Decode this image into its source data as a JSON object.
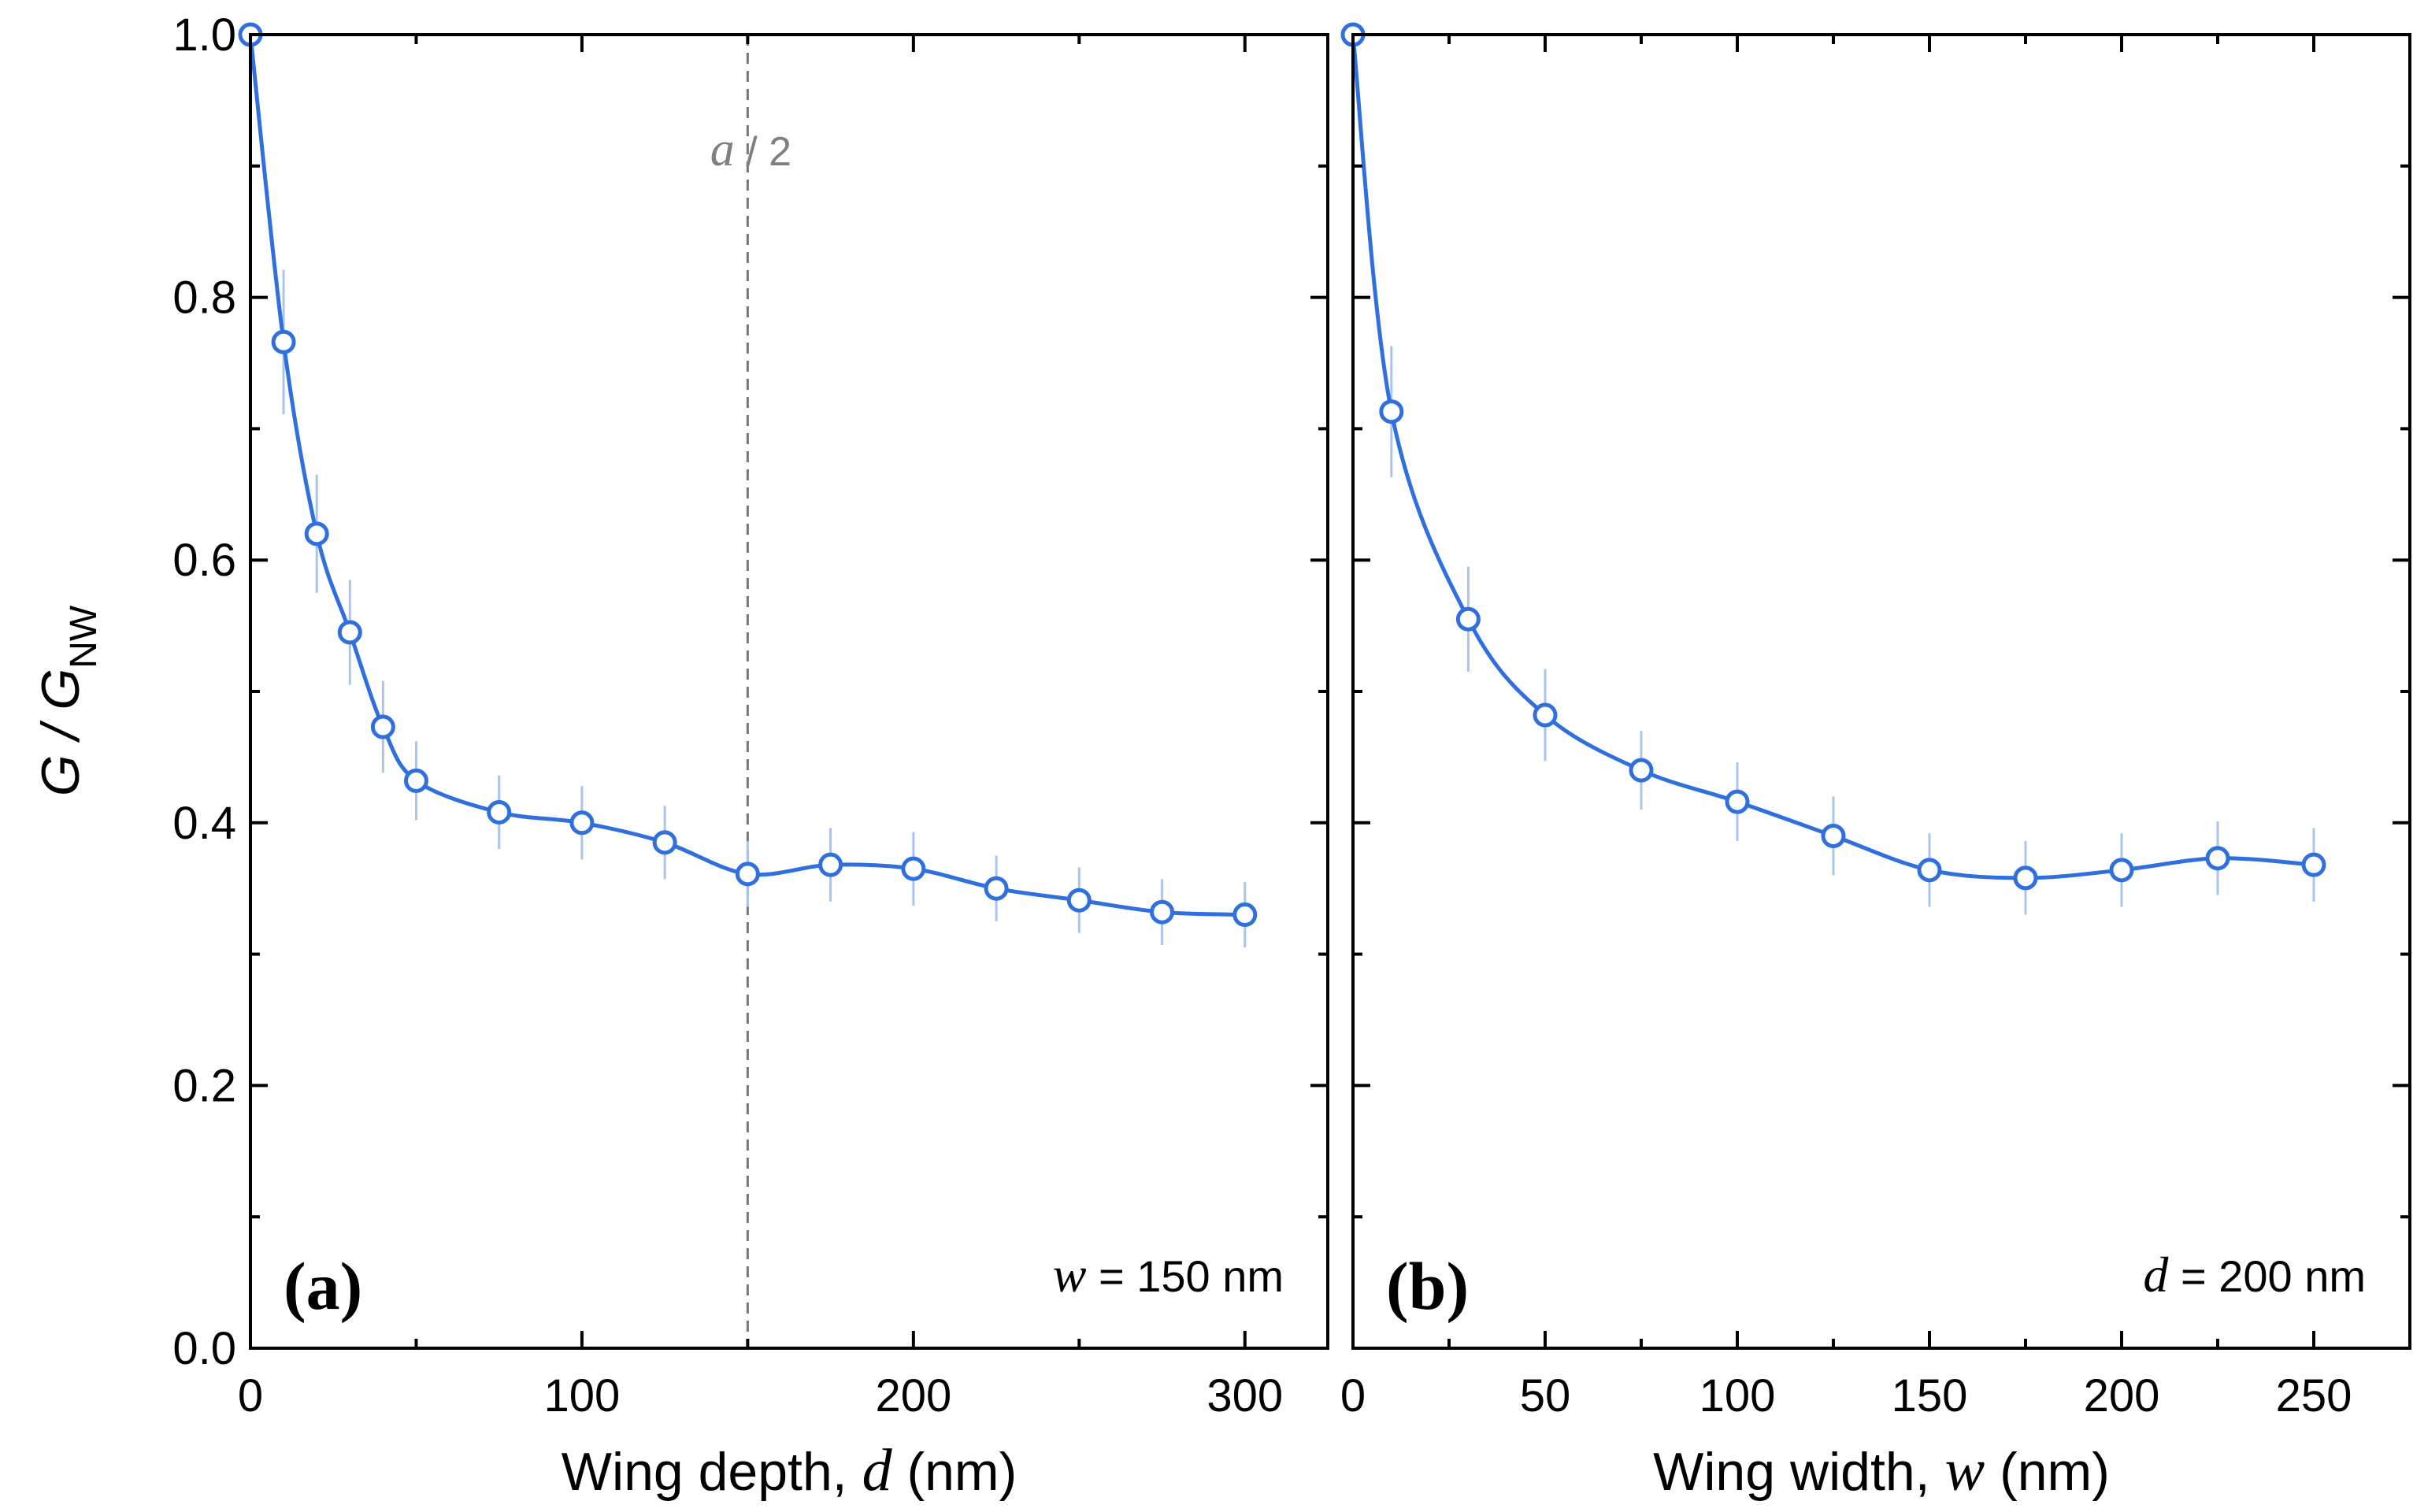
{
  "colors": {
    "series": "#2f6fde",
    "errorbar": "#a9c4f0",
    "axis": "#000000",
    "guide": "#777777"
  },
  "ylabel": {
    "main": "G / G",
    "sub": "NW"
  },
  "chart_data": [
    {
      "type": "line",
      "panel_label": "(a)",
      "xlabel_prefix": "Wing depth, ",
      "xlabel_var": "d",
      "xlabel_suffix": " (nm)",
      "annotation_var": "w",
      "annotation_text": " = 150 nm",
      "guide_line": {
        "x": 150,
        "label_var": "a",
        "label_rest": " / 2"
      },
      "xlim": [
        0,
        325
      ],
      "ylim": [
        0.0,
        1.0
      ],
      "xticks": [
        0,
        100,
        200,
        300
      ],
      "xtick_labels": [
        "0",
        "100",
        "200",
        "300"
      ],
      "yticks": [
        0.0,
        0.2,
        0.4,
        0.6,
        0.8,
        1.0
      ],
      "ytick_labels": [
        "0.0",
        "0.2",
        "0.4",
        "0.6",
        "0.8",
        "1.0"
      ],
      "x": [
        0,
        10,
        20,
        30,
        40,
        50,
        75,
        100,
        125,
        150,
        175,
        200,
        225,
        250,
        275,
        300
      ],
      "y": [
        1.0,
        0.766,
        0.62,
        0.545,
        0.473,
        0.432,
        0.408,
        0.4,
        0.385,
        0.361,
        0.368,
        0.365,
        0.35,
        0.341,
        0.332,
        0.33
      ],
      "err": [
        0,
        0.055,
        0.045,
        0.04,
        0.035,
        0.03,
        0.028,
        0.028,
        0.028,
        0.025,
        0.028,
        0.028,
        0.025,
        0.025,
        0.025,
        0.025
      ]
    },
    {
      "type": "line",
      "panel_label": "(b)",
      "xlabel_prefix": "Wing width, ",
      "xlabel_var": "w",
      "xlabel_suffix": " (nm)",
      "annotation_var": "d",
      "annotation_text": " = 200 nm",
      "xlim": [
        0,
        275
      ],
      "ylim": [
        0.0,
        1.0
      ],
      "xticks": [
        0,
        50,
        100,
        150,
        200,
        250
      ],
      "xtick_labels": [
        "0",
        "50",
        "100",
        "150",
        "200",
        "250"
      ],
      "yticks": [
        0.0,
        0.2,
        0.4,
        0.6,
        0.8,
        1.0
      ],
      "x": [
        0,
        10,
        30,
        50,
        75,
        100,
        125,
        150,
        175,
        200,
        225,
        250
      ],
      "y": [
        1.0,
        0.713,
        0.555,
        0.482,
        0.44,
        0.416,
        0.39,
        0.364,
        0.358,
        0.364,
        0.373,
        0.368
      ],
      "err": [
        0,
        0.05,
        0.04,
        0.035,
        0.03,
        0.03,
        0.03,
        0.028,
        0.028,
        0.028,
        0.028,
        0.028
      ]
    }
  ]
}
